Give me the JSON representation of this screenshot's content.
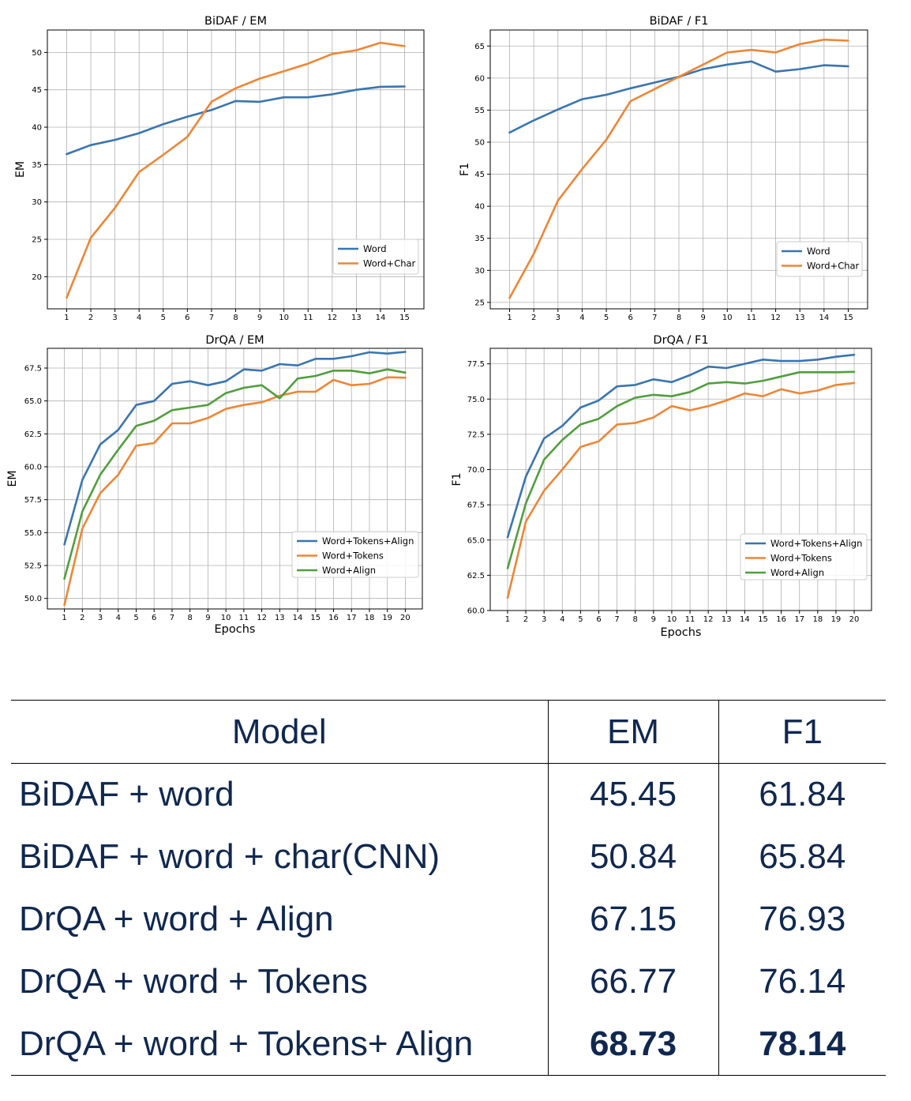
{
  "chart_data": [
    {
      "type": "line",
      "title": "BiDAF / EM",
      "xlabel": "",
      "ylabel": "EM",
      "x": [
        1,
        2,
        3,
        4,
        5,
        6,
        7,
        8,
        9,
        10,
        11,
        12,
        13,
        14,
        15
      ],
      "xlim": [
        0.2,
        15.8
      ],
      "ylim": [
        15.7,
        53.0
      ],
      "yticks": [
        20,
        25,
        30,
        35,
        40,
        45,
        50
      ],
      "yticks_labels": [
        "20",
        "25",
        "30",
        "35",
        "40",
        "45",
        "50"
      ],
      "legend_position": "lower-right",
      "series": [
        {
          "name": "Word",
          "color": "#3a75af",
          "values": [
            36.4,
            37.6,
            38.3,
            39.2,
            40.4,
            41.4,
            42.3,
            43.5,
            43.4,
            44.0,
            44.0,
            44.4,
            45.0,
            45.4,
            45.45
          ]
        },
        {
          "name": "Word+Char",
          "color": "#ee8636",
          "values": [
            17.2,
            25.2,
            29.2,
            34.0,
            36.3,
            38.7,
            43.4,
            45.2,
            46.5,
            47.5,
            48.5,
            49.8,
            50.3,
            51.3,
            50.84
          ]
        }
      ]
    },
    {
      "type": "line",
      "title": "BiDAF / F1",
      "xlabel": "",
      "ylabel": "F1",
      "x": [
        1,
        2,
        3,
        4,
        5,
        6,
        7,
        8,
        9,
        10,
        11,
        12,
        13,
        14,
        15
      ],
      "xlim": [
        0.2,
        15.8
      ],
      "ylim": [
        24.0,
        67.5
      ],
      "yticks": [
        25,
        30,
        35,
        40,
        45,
        50,
        55,
        60,
        65
      ],
      "yticks_labels": [
        "25",
        "30",
        "35",
        "40",
        "45",
        "50",
        "55",
        "60",
        "65"
      ],
      "legend_position": "lower-right",
      "series": [
        {
          "name": "Word",
          "color": "#3a75af",
          "values": [
            51.5,
            53.4,
            55.1,
            56.7,
            57.4,
            58.4,
            59.3,
            60.2,
            61.4,
            62.1,
            62.6,
            61.0,
            61.4,
            62.0,
            61.84
          ]
        },
        {
          "name": "Word+Char",
          "color": "#ee8636",
          "values": [
            25.7,
            32.6,
            40.9,
            45.8,
            50.4,
            56.4,
            58.3,
            60.2,
            62.1,
            64.0,
            64.4,
            64.0,
            65.3,
            66.0,
            65.84
          ]
        }
      ]
    },
    {
      "type": "line",
      "title": "DrQA / EM",
      "xlabel": "Epochs",
      "ylabel": "EM",
      "x": [
        1,
        2,
        3,
        4,
        5,
        6,
        7,
        8,
        9,
        10,
        11,
        12,
        13,
        14,
        15,
        16,
        17,
        18,
        19,
        20
      ],
      "xlim": [
        0.05,
        20.95
      ],
      "ylim": [
        49.2,
        69.0
      ],
      "yticks": [
        50.0,
        52.5,
        55.0,
        57.5,
        60.0,
        62.5,
        65.0,
        67.5
      ],
      "yticks_labels": [
        "50.0",
        "52.5",
        "55.0",
        "57.5",
        "60.0",
        "62.5",
        "65.0",
        "67.5"
      ],
      "legend_position": "lower-right",
      "series": [
        {
          "name": "Word+Tokens+Align",
          "color": "#3a75af",
          "values": [
            54.1,
            59.0,
            61.7,
            62.8,
            64.7,
            65.0,
            66.3,
            66.5,
            66.2,
            66.5,
            67.4,
            67.3,
            67.8,
            67.7,
            68.2,
            68.2,
            68.4,
            68.7,
            68.6,
            68.73
          ]
        },
        {
          "name": "Word+Tokens",
          "color": "#ee8636",
          "values": [
            49.5,
            55.3,
            58.0,
            59.4,
            61.6,
            61.8,
            63.3,
            63.3,
            63.7,
            64.4,
            64.7,
            64.9,
            65.4,
            65.7,
            65.7,
            66.6,
            66.2,
            66.3,
            66.8,
            66.77
          ]
        },
        {
          "name": "Word+Align",
          "color": "#519e3e",
          "values": [
            51.5,
            56.6,
            59.4,
            61.3,
            63.1,
            63.5,
            64.3,
            64.5,
            64.7,
            65.6,
            66.0,
            66.2,
            65.2,
            66.7,
            66.9,
            67.3,
            67.3,
            67.1,
            67.4,
            67.15
          ]
        }
      ]
    },
    {
      "type": "line",
      "title": "DrQA / F1",
      "xlabel": "Epochs",
      "ylabel": "F1",
      "x": [
        1,
        2,
        3,
        4,
        5,
        6,
        7,
        8,
        9,
        10,
        11,
        12,
        13,
        14,
        15,
        16,
        17,
        18,
        19,
        20
      ],
      "xlim": [
        0.05,
        20.95
      ],
      "ylim": [
        60.0,
        78.6
      ],
      "yticks": [
        60.0,
        62.5,
        65.0,
        67.5,
        70.0,
        72.5,
        75.0,
        77.5
      ],
      "yticks_labels": [
        "60.0",
        "62.5",
        "65.0",
        "67.5",
        "70.0",
        "72.5",
        "75.0",
        "77.5"
      ],
      "legend_position": "lower-right",
      "series": [
        {
          "name": "Word+Tokens+Align",
          "color": "#3a75af",
          "values": [
            65.2,
            69.5,
            72.2,
            73.1,
            74.4,
            74.9,
            75.9,
            76.0,
            76.4,
            76.2,
            76.7,
            77.3,
            77.2,
            77.5,
            77.8,
            77.7,
            77.7,
            77.8,
            78.0,
            78.14
          ]
        },
        {
          "name": "Word+Tokens",
          "color": "#ee8636",
          "values": [
            60.9,
            66.3,
            68.5,
            70.0,
            71.6,
            72.0,
            73.2,
            73.3,
            73.7,
            74.5,
            74.2,
            74.5,
            74.9,
            75.4,
            75.2,
            75.7,
            75.4,
            75.6,
            76.0,
            76.14
          ]
        },
        {
          "name": "Word+Align",
          "color": "#519e3e",
          "values": [
            63.0,
            67.6,
            70.7,
            72.1,
            73.2,
            73.6,
            74.5,
            75.1,
            75.3,
            75.2,
            75.5,
            76.1,
            76.2,
            76.1,
            76.3,
            76.6,
            76.9,
            76.9,
            76.9,
            76.93
          ]
        }
      ]
    }
  ],
  "table": {
    "headers": [
      "Model",
      "EM",
      "F1"
    ],
    "rows": [
      {
        "model": "BiDAF + word",
        "em": "45.45",
        "f1": "61.84",
        "bold": false
      },
      {
        "model": "BiDAF + word + char(CNN)",
        "em": "50.84",
        "f1": "65.84",
        "bold": false
      },
      {
        "model": "DrQA + word + Align",
        "em": "67.15",
        "f1": "76.93",
        "bold": false
      },
      {
        "model": "DrQA + word + Tokens",
        "em": "66.77",
        "f1": "76.14",
        "bold": false
      },
      {
        "model": "DrQA + word + Tokens+ Align",
        "em": "68.73",
        "f1": "78.14",
        "bold": true
      }
    ]
  },
  "colors": {
    "word_blue": "#3a75af",
    "char_orange": "#ee8636",
    "align_green": "#519e3e",
    "table_text": "#10284f"
  }
}
